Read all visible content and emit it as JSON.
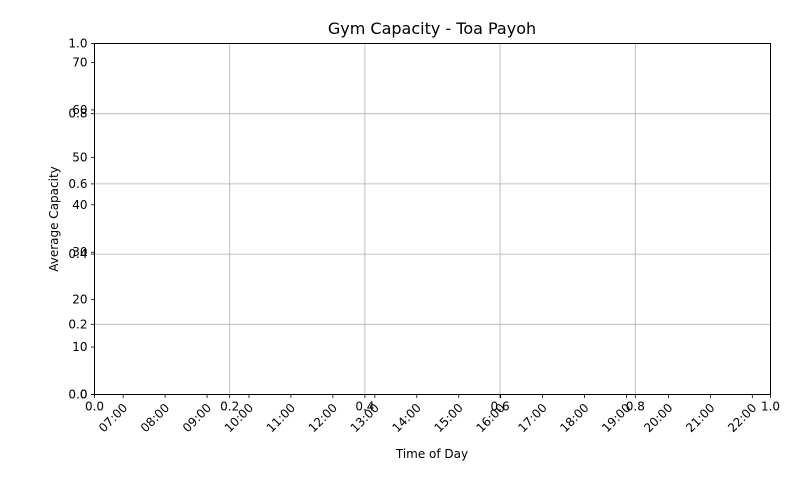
{
  "chart_data": {
    "type": "line",
    "title": "Gym Capacity - Toa Payoh",
    "xlabel": "Time of Day",
    "ylabel": "Average Capacity",
    "x": [],
    "series": [],
    "overlay_axis": {
      "x_ticks": [
        "0.0",
        "0.2",
        "0.4",
        "0.6",
        "0.8",
        "1.0"
      ],
      "y_ticks": [
        "0.0",
        "0.2",
        "0.4",
        "0.6",
        "0.8",
        "1.0"
      ],
      "xlim": [
        0,
        1
      ],
      "ylim": [
        0,
        1
      ]
    },
    "x_axis": {
      "tick_labels": [
        "07:00",
        "08:00",
        "09:00",
        "10:00",
        "11:00",
        "12:00",
        "13:00",
        "14:00",
        "15:00",
        "16:00",
        "17:00",
        "18:00",
        "19:00",
        "20:00",
        "21:00",
        "22:00"
      ],
      "xlim": [
        "06:19",
        "22:26"
      ]
    },
    "y_axis": {
      "tick_values": [
        0,
        10,
        20,
        30,
        40,
        50,
        60,
        70
      ],
      "ylim": [
        0,
        74
      ]
    },
    "grid": true,
    "legend": "none",
    "colors": {
      "grid": "#b0b0b0",
      "axis": "#000000"
    }
  }
}
